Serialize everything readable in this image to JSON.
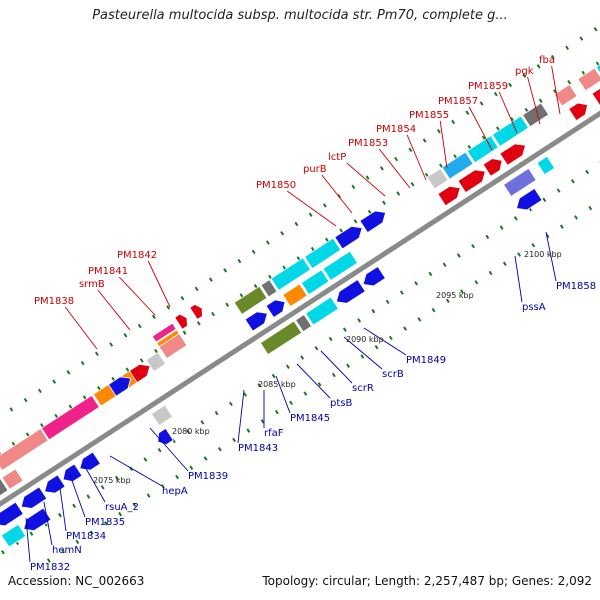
{
  "title": "Pasteurella multocida subsp. multocida str. Pm70, complete g...",
  "accession": "Accession: NC_002663",
  "topology": "Topology: circular; Length: 2,257,487 bp; Genes: 2,092",
  "colors": {
    "backbone": "#8a8a8a",
    "forward_label": "#cc0000",
    "reverse_label": "#0000aa",
    "tick_mark": "#1a7a1a",
    "gene_blue": "#1010e0",
    "gene_red": "#e00010",
    "gene_cyan": "#00d8e8",
    "gene_olive": "#6a8a2a",
    "gene_pink": "#f08888",
    "gene_magenta": "#ee2288",
    "gene_orange": "#ff8800",
    "gene_gray": "#707070",
    "gene_lightgray": "#c8c8c8",
    "gene_purple": "#7070dd",
    "gene_skyblue": "#22aaee"
  },
  "scale_labels": [
    "2075 kbp",
    "2080 kbp",
    "2085 kbp",
    "2090 kbp",
    "2095 kbp",
    "2100 kbp"
  ],
  "forward_gene_labels": [
    "PM1838",
    "srmB",
    "PM1841",
    "PM1842",
    "PM1850",
    "purB",
    "lctP",
    "PM1853",
    "PM1854",
    "PM1855",
    "PM1857",
    "PM1859",
    "pgk",
    "fba"
  ],
  "reverse_gene_labels": [
    "PM1832",
    "hemN",
    "PM1834",
    "PM1835",
    "rsuA_2",
    "hepA",
    "PM1839",
    "PM1843",
    "rfaF",
    "PM1845",
    "ptsB",
    "scrR",
    "scrB",
    "PM1849",
    "pssA",
    "PM1858"
  ]
}
